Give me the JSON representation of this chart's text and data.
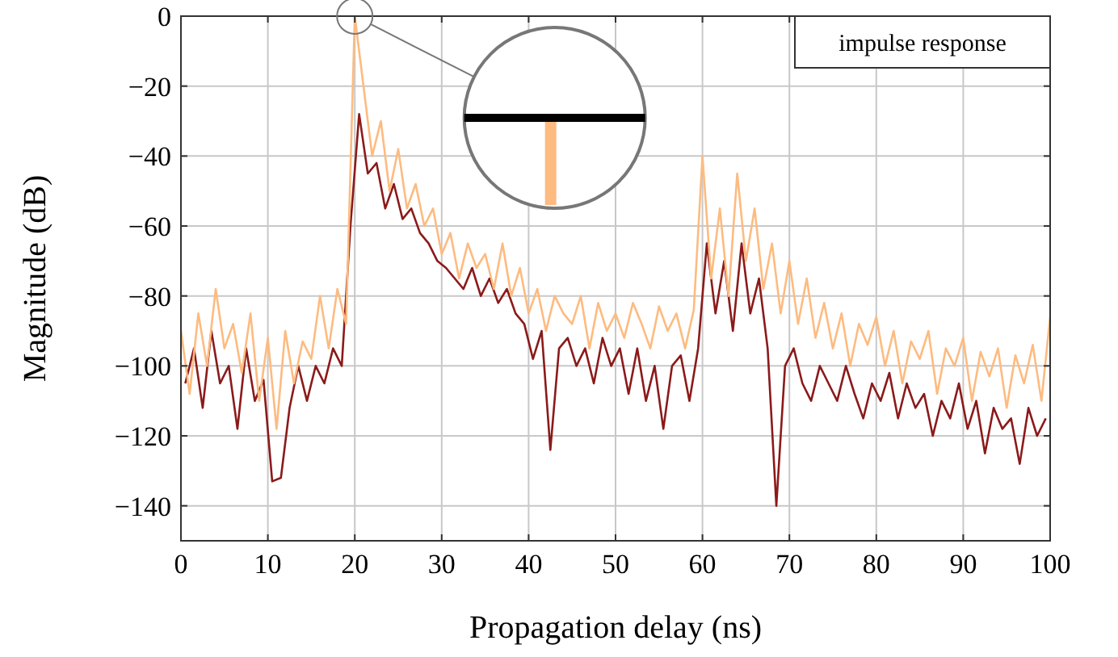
{
  "chart_data": {
    "type": "line",
    "xlabel": "Propagation delay (ns)",
    "ylabel": "Magnitude (dB)",
    "xlim": [
      0,
      100
    ],
    "xticks": [
      0,
      10,
      20,
      30,
      40,
      50,
      60,
      70,
      80,
      90,
      100
    ],
    "ylim": [
      -150,
      0
    ],
    "yticks": [
      {
        "value": 0,
        "label": "0"
      },
      {
        "value": -20,
        "label": "−20"
      },
      {
        "value": -40,
        "label": "−40"
      },
      {
        "value": -60,
        "label": "−60"
      },
      {
        "value": -80,
        "label": "−80"
      },
      {
        "value": -100,
        "label": "−100"
      },
      {
        "value": -120,
        "label": "−120"
      },
      {
        "value": -140,
        "label": "−140"
      }
    ],
    "grid": true,
    "marker": "none",
    "line_style": "solid",
    "annotations": [
      "impulse response"
    ],
    "series": [
      {
        "color": "#8b1a1a",
        "x": [
          0.5,
          1.5,
          2.5,
          3.5,
          4.5,
          5.5,
          6.5,
          7.5,
          8.5,
          9.5,
          10.5,
          11.5,
          12.5,
          13.5,
          14.5,
          15.5,
          16.5,
          17.5,
          18.5,
          19.5,
          20.5,
          21.5,
          22.5,
          23.5,
          24.5,
          25.5,
          26.5,
          27.5,
          28.5,
          29.5,
          30.5,
          31.5,
          32.5,
          33.5,
          34.5,
          35.5,
          36.5,
          37.5,
          38.5,
          39.5,
          40.5,
          41.5,
          42.5,
          43.5,
          44.5,
          45.5,
          46.5,
          47.5,
          48.5,
          49.5,
          50.5,
          51.5,
          52.5,
          53.5,
          54.5,
          55.5,
          56.5,
          57.5,
          58.5,
          59.5,
          60.5,
          61.5,
          62.5,
          63.5,
          64.5,
          65.5,
          66.5,
          67.5,
          68.5,
          69.5,
          70.5,
          71.5,
          72.5,
          73.5,
          74.5,
          75.5,
          76.5,
          77.5,
          78.5,
          79.5,
          80.5,
          81.5,
          82.5,
          83.5,
          84.5,
          85.5,
          86.5,
          87.5,
          88.5,
          89.5,
          90.5,
          91.5,
          92.5,
          93.5,
          94.5,
          95.5,
          96.5,
          97.5,
          98.5,
          99.5
        ],
        "values": [
          -105,
          -95,
          -112,
          -90,
          -105,
          -100,
          -118,
          -95,
          -110,
          -104,
          -133,
          -132,
          -112,
          -100,
          -110,
          -100,
          -105,
          -95,
          -100,
          -60,
          -28,
          -45,
          -42,
          -55,
          -48,
          -58,
          -55,
          -62,
          -65,
          -70,
          -72,
          -75,
          -78,
          -72,
          -80,
          -75,
          -82,
          -78,
          -85,
          -88,
          -98,
          -90,
          -124,
          -95,
          -92,
          -100,
          -95,
          -105,
          -92,
          -100,
          -95,
          -108,
          -95,
          -110,
          -100,
          -118,
          -100,
          -97,
          -110,
          -95,
          -65,
          -85,
          -70,
          -90,
          -65,
          -85,
          -75,
          -95,
          -140,
          -100,
          -95,
          -105,
          -110,
          -100,
          -105,
          -110,
          -100,
          -108,
          -115,
          -105,
          -110,
          -102,
          -115,
          -105,
          -112,
          -108,
          -120,
          -110,
          -115,
          -105,
          -118,
          -110,
          -125,
          -112,
          -118,
          -115,
          -128,
          -112,
          -120,
          -115
        ]
      },
      {
        "color": "#fdbb80",
        "x": [
          0,
          1,
          2,
          3,
          4,
          5,
          6,
          7,
          8,
          9,
          10,
          11,
          12,
          13,
          14,
          15,
          16,
          17,
          18,
          19,
          20,
          21,
          22,
          23,
          24,
          25,
          26,
          27,
          28,
          29,
          30,
          31,
          32,
          33,
          34,
          35,
          36,
          37,
          38,
          39,
          40,
          41,
          42,
          43,
          44,
          45,
          46,
          47,
          48,
          49,
          50,
          51,
          52,
          53,
          54,
          55,
          56,
          57,
          58,
          59,
          60,
          61,
          62,
          63,
          64,
          65,
          66,
          67,
          68,
          69,
          70,
          71,
          72,
          73,
          74,
          75,
          76,
          77,
          78,
          79,
          80,
          81,
          82,
          83,
          84,
          85,
          86,
          87,
          88,
          89,
          90,
          91,
          92,
          93,
          94,
          95,
          96,
          97,
          98,
          99,
          100
        ],
        "values": [
          -90,
          -108,
          -85,
          -100,
          -78,
          -95,
          -88,
          -102,
          -85,
          -110,
          -92,
          -118,
          -90,
          -105,
          -93,
          -98,
          -80,
          -95,
          -78,
          -88,
          0,
          -20,
          -40,
          -30,
          -50,
          -38,
          -55,
          -48,
          -60,
          -55,
          -68,
          -62,
          -75,
          -65,
          -72,
          -68,
          -78,
          -65,
          -80,
          -72,
          -85,
          -78,
          -90,
          -80,
          -85,
          -88,
          -80,
          -95,
          -82,
          -90,
          -85,
          -92,
          -82,
          -88,
          -95,
          -83,
          -90,
          -85,
          -95,
          -84,
          -40,
          -75,
          -55,
          -80,
          -45,
          -70,
          -55,
          -78,
          -65,
          -85,
          -70,
          -88,
          -75,
          -92,
          -82,
          -95,
          -85,
          -100,
          -88,
          -94,
          -86,
          -100,
          -90,
          -105,
          -93,
          -98,
          -90,
          -108,
          -95,
          -100,
          -92,
          -110,
          -96,
          -103,
          -95,
          -112,
          -97,
          -105,
          -94,
          -110,
          -86
        ]
      }
    ]
  }
}
